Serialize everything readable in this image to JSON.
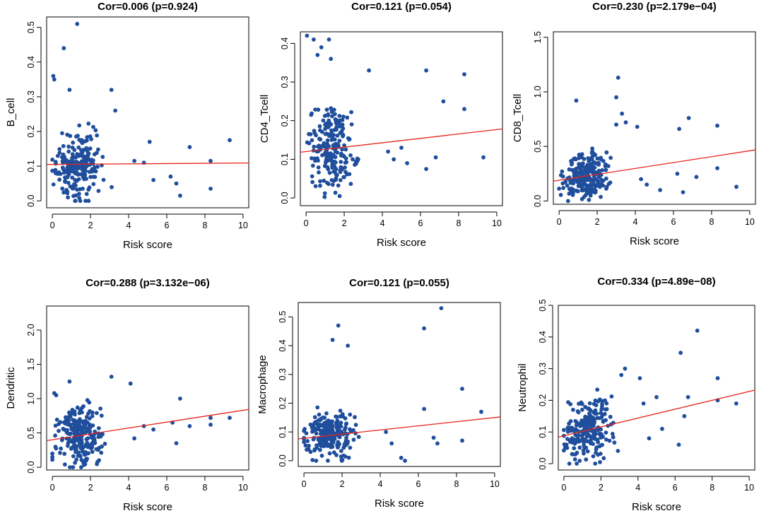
{
  "figure": {
    "point_color": "#1f4e9c",
    "line_color": "#e8231c"
  },
  "chart_data": [
    {
      "type": "scatter",
      "title": "Cor=0.006 (p=0.924)",
      "xlabel": "Risk score",
      "ylabel": "B_cell",
      "xlim": [
        -0.3,
        10.3
      ],
      "ylim": [
        -0.02,
        0.53
      ],
      "xticks": [
        0,
        2,
        4,
        6,
        8,
        10
      ],
      "yticks": [
        0.0,
        0.1,
        0.2,
        0.3,
        0.4,
        0.5
      ],
      "ytick_labels": [
        "0.0",
        "0.1",
        "0.2",
        "0.3",
        "0.4",
        "0.5"
      ],
      "regression": {
        "intercept": 0.105,
        "slope": 0.0004
      },
      "max_y": 0.52,
      "outliers": [
        [
          1.3,
          0.51
        ],
        [
          0.6,
          0.44
        ],
        [
          0.05,
          0.36
        ],
        [
          0.1,
          0.35
        ],
        [
          0.9,
          0.32
        ],
        [
          3.1,
          0.32
        ],
        [
          3.3,
          0.26
        ],
        [
          5.1,
          0.17
        ],
        [
          7.2,
          0.155
        ],
        [
          8.3,
          0.115
        ],
        [
          9.3,
          0.175
        ],
        [
          8.3,
          0.035
        ],
        [
          6.5,
          0.05
        ],
        [
          6.7,
          0.015
        ],
        [
          6.2,
          0.07
        ],
        [
          5.3,
          0.06
        ],
        [
          4.3,
          0.115
        ],
        [
          4.8,
          0.11
        ]
      ]
    },
    {
      "type": "scatter",
      "title": "Cor=0.121 (p=0.054)",
      "xlabel": "Risk score",
      "ylabel": "CD4_Tcell",
      "xlim": [
        -0.3,
        10.3
      ],
      "ylim": [
        -0.02,
        0.43
      ],
      "xticks": [
        0,
        2,
        4,
        6,
        8,
        10
      ],
      "yticks": [
        0.0,
        0.1,
        0.2,
        0.3,
        0.4
      ],
      "ytick_labels": [
        "0.0",
        "0.1",
        "0.2",
        "0.3",
        "0.4"
      ],
      "regression": {
        "intercept": 0.12,
        "slope": 0.0057
      },
      "max_y": 0.43,
      "outliers": [
        [
          0.05,
          0.42
        ],
        [
          0.4,
          0.41
        ],
        [
          0.8,
          0.39
        ],
        [
          1.2,
          0.41
        ],
        [
          0.6,
          0.37
        ],
        [
          1.3,
          0.36
        ],
        [
          3.3,
          0.33
        ],
        [
          6.3,
          0.33
        ],
        [
          8.3,
          0.32
        ],
        [
          7.2,
          0.25
        ],
        [
          8.3,
          0.23
        ],
        [
          9.3,
          0.105
        ],
        [
          6.8,
          0.105
        ],
        [
          6.3,
          0.075
        ],
        [
          5.3,
          0.09
        ],
        [
          4.6,
          0.1
        ],
        [
          4.3,
          0.12
        ],
        [
          5.0,
          0.13
        ]
      ]
    },
    {
      "type": "scatter",
      "title": "Cor=0.230 (p=2.179e−04)",
      "xlabel": "Risk score",
      "ylabel": "CD8_Tcell",
      "xlim": [
        -0.3,
        10.3
      ],
      "ylim": [
        -0.03,
        1.55
      ],
      "xticks": [
        0,
        2,
        4,
        6,
        8,
        10
      ],
      "yticks": [
        0.0,
        0.5,
        1.0,
        1.5
      ],
      "ytick_labels": [
        "0.0",
        "0.5",
        "1.0",
        "1.5"
      ],
      "regression": {
        "intercept": 0.19,
        "slope": 0.027
      },
      "max_y": 1.5,
      "outliers": [
        [
          3.1,
          1.13
        ],
        [
          3.0,
          0.95
        ],
        [
          0.9,
          0.92
        ],
        [
          3.3,
          0.8
        ],
        [
          3.0,
          0.7
        ],
        [
          3.5,
          0.72
        ],
        [
          4.1,
          0.68
        ],
        [
          6.3,
          0.66
        ],
        [
          6.8,
          0.76
        ],
        [
          8.3,
          0.69
        ],
        [
          8.3,
          0.3
        ],
        [
          7.2,
          0.22
        ],
        [
          9.3,
          0.13
        ],
        [
          6.5,
          0.08
        ],
        [
          6.2,
          0.25
        ],
        [
          5.3,
          0.1
        ],
        [
          4.6,
          0.15
        ],
        [
          4.3,
          0.2
        ]
      ]
    },
    {
      "type": "scatter",
      "title": "Cor=0.288 (p=3.132e−06)",
      "xlabel": "Risk score",
      "ylabel": "Dendritic",
      "xlim": [
        -0.3,
        10.3
      ],
      "ylim": [
        -0.04,
        2.35
      ],
      "xticks": [
        0,
        2,
        4,
        6,
        8,
        10
      ],
      "yticks": [
        0.0,
        0.5,
        1.0,
        1.5,
        2.0
      ],
      "ytick_labels": [
        "0.0",
        "0.5",
        "1.0",
        "1.5",
        "2.0"
      ],
      "regression": {
        "intercept": 0.4,
        "slope": 0.043
      },
      "max_y": 2.3,
      "outliers": [
        [
          0.1,
          1.08
        ],
        [
          0.2,
          1.05
        ],
        [
          0.9,
          1.25
        ],
        [
          3.1,
          1.32
        ],
        [
          4.1,
          1.22
        ],
        [
          6.7,
          1.0
        ],
        [
          6.3,
          0.65
        ],
        [
          7.2,
          0.6
        ],
        [
          8.3,
          0.72
        ],
        [
          8.3,
          0.62
        ],
        [
          9.3,
          0.72
        ],
        [
          6.5,
          0.35
        ],
        [
          5.3,
          0.55
        ],
        [
          4.8,
          0.6
        ],
        [
          4.3,
          0.42
        ]
      ]
    },
    {
      "type": "scatter",
      "title": "Cor=0.121 (p=0.055)",
      "xlabel": "Risk score",
      "ylabel": "Macrophage",
      "xlim": [
        -0.3,
        10.3
      ],
      "ylim": [
        -0.02,
        0.55
      ],
      "xticks": [
        0,
        2,
        4,
        6,
        8,
        10
      ],
      "yticks": [
        0.0,
        0.1,
        0.2,
        0.3,
        0.4,
        0.5
      ],
      "ytick_labels": [
        "0.0",
        "0.1",
        "0.2",
        "0.3",
        "0.4",
        "0.5"
      ],
      "regression": {
        "intercept": 0.078,
        "slope": 0.0072
      },
      "max_y": 0.54,
      "outliers": [
        [
          7.2,
          0.53
        ],
        [
          6.3,
          0.46
        ],
        [
          1.8,
          0.47
        ],
        [
          2.3,
          0.4
        ],
        [
          1.5,
          0.42
        ],
        [
          8.3,
          0.25
        ],
        [
          6.3,
          0.18
        ],
        [
          9.3,
          0.17
        ],
        [
          6.8,
          0.08
        ],
        [
          7.0,
          0.06
        ],
        [
          8.3,
          0.07
        ],
        [
          5.3,
          0.0
        ],
        [
          5.1,
          0.01
        ],
        [
          4.3,
          0.1
        ],
        [
          4.6,
          0.06
        ]
      ]
    },
    {
      "type": "scatter",
      "title": "Cor=0.334 (p=4.89e−08)",
      "xlabel": "Risk score",
      "ylabel": "Neutrophil",
      "xlim": [
        -0.3,
        10.3
      ],
      "ylim": [
        -0.02,
        0.5
      ],
      "xticks": [
        0,
        2,
        4,
        6,
        8,
        10
      ],
      "yticks": [
        0.0,
        0.1,
        0.2,
        0.3,
        0.4,
        0.5
      ],
      "ytick_labels": [
        "0.0",
        "0.1",
        "0.2",
        "0.3",
        "0.4",
        "0.5"
      ],
      "regression": {
        "intercept": 0.088,
        "slope": 0.014
      },
      "max_y": 0.49,
      "outliers": [
        [
          7.2,
          0.42
        ],
        [
          6.3,
          0.35
        ],
        [
          8.3,
          0.27
        ],
        [
          8.3,
          0.2
        ],
        [
          9.3,
          0.19
        ],
        [
          6.5,
          0.15
        ],
        [
          6.7,
          0.21
        ],
        [
          6.2,
          0.06
        ],
        [
          5.3,
          0.11
        ],
        [
          5.0,
          0.21
        ],
        [
          4.3,
          0.19
        ],
        [
          4.1,
          0.27
        ],
        [
          3.3,
          0.3
        ],
        [
          3.1,
          0.28
        ],
        [
          4.6,
          0.08
        ]
      ]
    }
  ]
}
